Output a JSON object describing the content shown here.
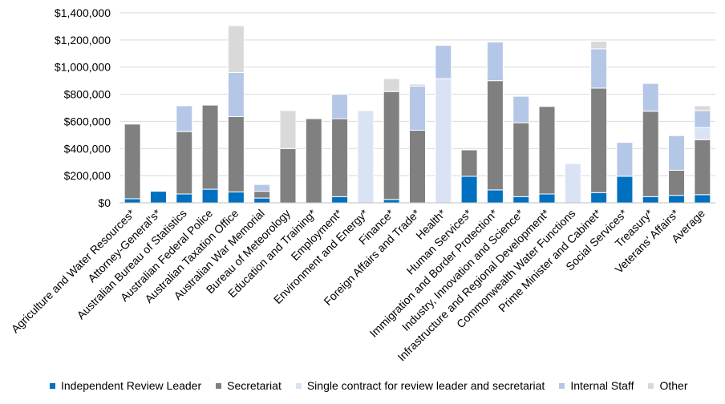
{
  "chart_data": {
    "type": "stacked-bar",
    "title": "",
    "xlabel": "",
    "ylabel": "",
    "ylim": [
      0,
      1400000
    ],
    "yticks": [
      0,
      200000,
      400000,
      600000,
      800000,
      1000000,
      1200000,
      1400000
    ],
    "ytick_labels": [
      "$0",
      "$200,000",
      "$400,000",
      "$600,000",
      "$800,000",
      "$1,000,000",
      "$1,200,000",
      "$1,400,000"
    ],
    "grid": true,
    "legend_position": "bottom",
    "categories": [
      "Agriculture and Water Resources*",
      "Attorney-General's*",
      "Australian Bureau of Statistics",
      "Australian Federal Police",
      "Australian Taxation Office",
      "Australian War Memorial",
      "Bureau of Meteorology",
      "Education and Training*",
      "Employment*",
      "Environment and Energy*",
      "Finance*",
      "Foreign Affairs and Trade*",
      "Health*",
      "Human Services*",
      "Immigration and Border Protection*",
      "Industry, Innovation and Science*",
      "Infrastructure and Regional Development*",
      "Commonwealth Water Functions",
      "Prime Minister and Cabinet*",
      "Social Services*",
      "Treasury*",
      "Veterans' Affairs*",
      "Average"
    ],
    "series": [
      {
        "name": "Independent Review Leader",
        "color": "#0070c0",
        "values": [
          30000,
          85000,
          65000,
          100000,
          80000,
          35000,
          0,
          0,
          45000,
          0,
          25000,
          0,
          0,
          195000,
          95000,
          45000,
          65000,
          0,
          75000,
          195000,
          45000,
          55000,
          60000
        ]
      },
      {
        "name": "Secretariat",
        "color": "#808080",
        "values": [
          550000,
          0,
          460000,
          620000,
          555000,
          50000,
          400000,
          620000,
          575000,
          0,
          795000,
          535000,
          0,
          195000,
          805000,
          545000,
          645000,
          0,
          770000,
          0,
          630000,
          185000,
          405000
        ]
      },
      {
        "name": "Single contract for review leader and secretariat",
        "color": "#dae3f3",
        "values": [
          0,
          0,
          0,
          0,
          0,
          0,
          0,
          0,
          0,
          680000,
          0,
          0,
          915000,
          0,
          0,
          0,
          0,
          290000,
          0,
          0,
          0,
          0,
          90000
        ]
      },
      {
        "name": "Internal Staff",
        "color": "#b4c7e7",
        "values": [
          0,
          0,
          190000,
          0,
          325000,
          50000,
          0,
          0,
          180000,
          0,
          0,
          325000,
          245000,
          0,
          285000,
          195000,
          0,
          0,
          290000,
          250000,
          205000,
          255000,
          125000
        ]
      },
      {
        "name": "Other",
        "color": "#d9d9d9",
        "values": [
          0,
          0,
          0,
          0,
          345000,
          0,
          280000,
          0,
          0,
          0,
          95000,
          15000,
          0,
          0,
          0,
          0,
          0,
          0,
          55000,
          0,
          0,
          0,
          35000
        ]
      }
    ]
  }
}
